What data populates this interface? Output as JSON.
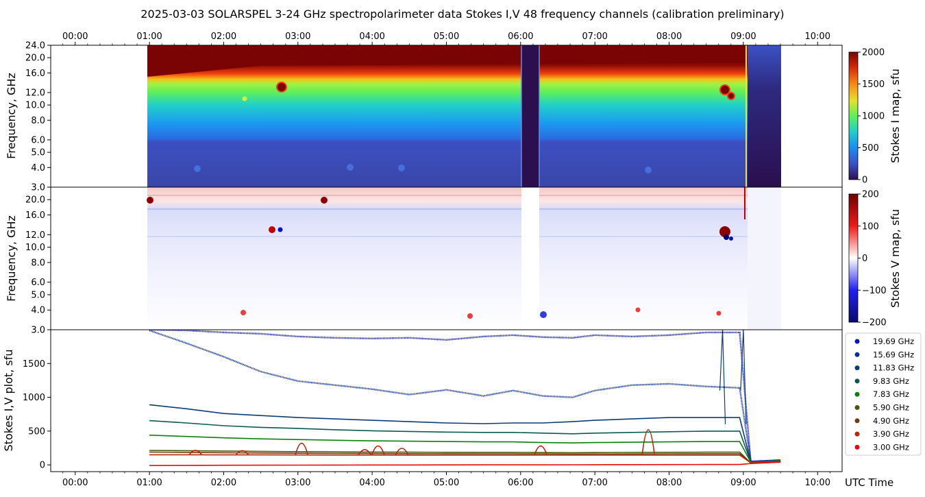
{
  "title": "2025-03-03   SOLARSPEL  3-24 GHz spectropolarimeter data   Stokes I,V   48 frequency channels   (calibration preliminary)",
  "colors": {
    "stokes_i_scale": [
      "#2b0f4f",
      "#3c4fc2",
      "#1b8cf0",
      "#22d0c8",
      "#5ef05a",
      "#e6e02a",
      "#f58a17",
      "#d42a09",
      "#7a0403"
    ],
    "stokes_v_scale": [
      "#0a0a6e",
      "#2020ee",
      "#ffffff",
      "#ee1a1a",
      "#6e0000"
    ]
  },
  "chart_data": [
    {
      "type": "heatmap",
      "name": "stokes-i-map",
      "ylabel": "Frequency, GHz",
      "y_ticks": [
        "24.0",
        "20.0",
        "16.0",
        "12.0",
        "10.0",
        "8.0",
        "6.0",
        "5.0",
        "4.0",
        "3.0"
      ],
      "y_tick_values": [
        24,
        20,
        16,
        12,
        10,
        8,
        6,
        5,
        4,
        3
      ],
      "ylim": [
        3,
        24
      ],
      "x_top_ticks": [
        "00:00",
        "01:00",
        "02:00",
        "03:00",
        "04:00",
        "05:00",
        "06:00",
        "07:00",
        "08:00",
        "09:00",
        "10:00"
      ],
      "x_tick_hours": [
        0,
        1,
        2,
        3,
        4,
        5,
        6,
        7,
        8,
        9,
        10
      ],
      "xlim_hours": [
        -0.33,
        10.33
      ],
      "data_range_hours": [
        0.97,
        9.5
      ],
      "gap_hours": [
        6.0,
        6.25
      ],
      "colorbar_label": "Stokes I map, sfu",
      "colorbar_ticks": [
        "2000",
        "1500",
        "1000",
        "500",
        "0"
      ],
      "colorbar_tick_values": [
        2000,
        1500,
        1000,
        500,
        0
      ],
      "clim": [
        0,
        2000
      ]
    },
    {
      "type": "heatmap",
      "name": "stokes-v-map",
      "ylabel": "Frequency, GHz",
      "y_ticks": [
        "20.0",
        "16.0",
        "12.0",
        "10.0",
        "8.0",
        "6.0",
        "5.0",
        "4.0",
        "3.0"
      ],
      "y_tick_values": [
        20,
        16,
        12,
        10,
        8,
        6,
        5,
        4,
        3
      ],
      "ylim": [
        3,
        24
      ],
      "colorbar_label": "Stokes V map, sfu",
      "colorbar_ticks": [
        "200",
        "100",
        "0",
        "−100",
        "−200"
      ],
      "colorbar_tick_values": [
        200,
        100,
        0,
        -100,
        -200
      ],
      "clim": [
        -200,
        200
      ]
    },
    {
      "type": "line",
      "name": "stokes-iv-plot",
      "ylabel": "Stokes I,V plot, sfu",
      "xlabel": "UTC Time",
      "y_ticks": [
        "1500",
        "1000",
        "500",
        "0"
      ],
      "y_tick_values": [
        1500,
        1000,
        500,
        0
      ],
      "ylim": [
        -100,
        2000
      ],
      "x_ticks": [
        "00:00",
        "01:00",
        "02:00",
        "03:00",
        "04:00",
        "05:00",
        "06:00",
        "07:00",
        "08:00",
        "09:00",
        "10:00"
      ],
      "x_tick_hours": [
        0,
        1,
        2,
        3,
        4,
        5,
        6,
        7,
        8,
        9,
        10
      ],
      "x_hours": [
        1.0,
        1.5,
        2.0,
        2.5,
        3.0,
        3.5,
        4.0,
        4.5,
        5.0,
        5.5,
        5.9,
        6.3,
        6.7,
        7.0,
        7.5,
        8.0,
        8.5,
        8.95,
        9.1,
        9.5
      ],
      "legend": [
        {
          "label": "19.69 GHz",
          "color": "#0a14c8"
        },
        {
          "label": "15.69 GHz",
          "color": "#0a2aaa"
        },
        {
          "label": "11.83 GHz",
          "color": "#0a3c78"
        },
        {
          "label": "9.83 GHz",
          "color": "#0a5a50"
        },
        {
          "label": "7.83 GHz",
          "color": "#0a820a"
        },
        {
          "label": "5.90 GHz",
          "color": "#465a0a"
        },
        {
          "label": "4.90 GHz",
          "color": "#6e3c0a"
        },
        {
          "label": "3.90 GHz",
          "color": "#b4280a"
        },
        {
          "label": "3.00 GHz",
          "color": "#e60a0a"
        }
      ],
      "series": [
        {
          "name": "19.69 GHz",
          "values": [
            2000,
            1990,
            1960,
            1940,
            1900,
            1880,
            1870,
            1880,
            1850,
            1900,
            1920,
            1890,
            1880,
            1920,
            1900,
            1920,
            1960,
            1960,
            50,
            70
          ]
        },
        {
          "name": "15.69 GHz",
          "values": [
            1990,
            1800,
            1600,
            1380,
            1240,
            1180,
            1120,
            1040,
            1110,
            1020,
            1100,
            1020,
            1000,
            1100,
            1180,
            1200,
            1160,
            1140,
            50,
            70
          ]
        },
        {
          "name": "11.83 GHz",
          "values": [
            890,
            830,
            760,
            730,
            700,
            680,
            660,
            640,
            620,
            610,
            620,
            620,
            640,
            660,
            680,
            700,
            700,
            700,
            40,
            60
          ]
        },
        {
          "name": "9.83 GHz",
          "values": [
            655,
            620,
            580,
            555,
            540,
            520,
            505,
            495,
            485,
            480,
            480,
            470,
            460,
            470,
            480,
            490,
            500,
            500,
            40,
            60
          ]
        },
        {
          "name": "7.83 GHz",
          "values": [
            440,
            420,
            400,
            385,
            375,
            365,
            355,
            350,
            345,
            340,
            340,
            330,
            325,
            330,
            335,
            340,
            345,
            345,
            40,
            60
          ]
        },
        {
          "name": "5.90 GHz",
          "values": [
            215,
            210,
            205,
            200,
            195,
            192,
            190,
            188,
            186,
            185,
            185,
            182,
            180,
            182,
            184,
            186,
            188,
            188,
            30,
            50
          ]
        },
        {
          "name": "4.90 GHz",
          "values": [
            190,
            185,
            180,
            176,
            172,
            170,
            168,
            166,
            165,
            164,
            164,
            162,
            160,
            161,
            162,
            164,
            165,
            165,
            30,
            50
          ]
        },
        {
          "name": "3.90 GHz",
          "values": [
            150,
            150,
            148,
            148,
            147,
            146,
            146,
            145,
            145,
            144,
            144,
            143,
            143,
            143,
            144,
            144,
            145,
            145,
            30,
            50
          ]
        },
        {
          "name": "3.00 GHz",
          "values": [
            -10,
            -8,
            -6,
            -5,
            -4,
            -3,
            -2,
            -2,
            -1,
            0,
            0,
            0,
            1,
            2,
            3,
            4,
            5,
            5,
            20,
            40
          ]
        }
      ],
      "bursts_3_90_ghz": [
        {
          "hour": 1.62,
          "peak": 215
        },
        {
          "hour": 2.25,
          "peak": 210
        },
        {
          "hour": 3.05,
          "peak": 320
        },
        {
          "hour": 3.9,
          "peak": 225
        },
        {
          "hour": 4.08,
          "peak": 280
        },
        {
          "hour": 4.4,
          "peak": 245
        },
        {
          "hour": 6.27,
          "peak": 280
        },
        {
          "hour": 7.72,
          "peak": 520
        }
      ],
      "spikes_15_69_ghz": [
        {
          "hour": 8.72,
          "peak": 2000
        },
        {
          "hour": 9.0,
          "peak": 2000
        }
      ]
    }
  ]
}
